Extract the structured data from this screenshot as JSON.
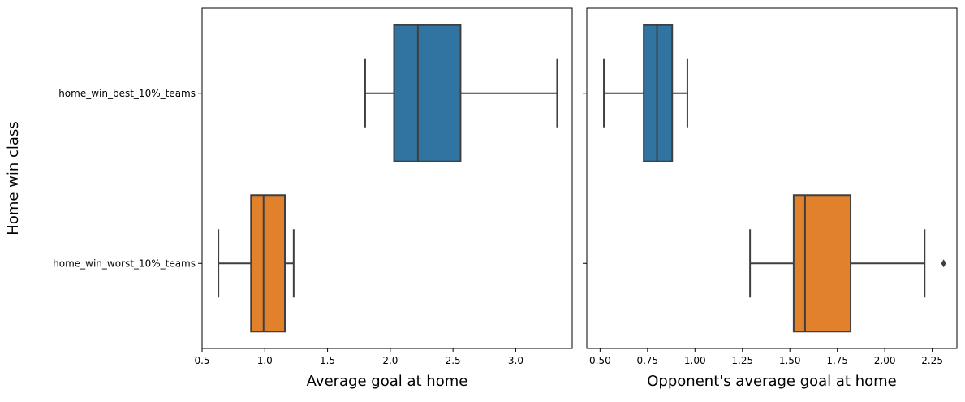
{
  "chart_data": [
    {
      "type": "boxplot",
      "xlabel": "Average goal at home",
      "ylabel": "Home win class",
      "categories": [
        "home_win_best_10%_teams",
        "home_win_worst_10%_teams"
      ],
      "xlim": [
        0.5,
        3.45
      ],
      "xticks": [
        0.5,
        1.0,
        1.5,
        2.0,
        2.5,
        3.0
      ],
      "xtick_labels": [
        "0.5",
        "1.0",
        "1.5",
        "2.0",
        "2.5",
        "3.0"
      ],
      "series": [
        {
          "category": "home_win_best_10%_teams",
          "color": "#3274a1",
          "whisker_low": 1.8,
          "q1": 2.03,
          "median": 2.22,
          "q3": 2.56,
          "whisker_high": 3.33,
          "outliers": []
        },
        {
          "category": "home_win_worst_10%_teams",
          "color": "#e1812c",
          "whisker_low": 0.63,
          "q1": 0.89,
          "median": 0.99,
          "q3": 1.16,
          "whisker_high": 1.23,
          "outliers": []
        }
      ],
      "grid": false,
      "legend": "none"
    },
    {
      "type": "boxplot",
      "xlabel": "Opponent's average goal at home",
      "ylabel": "",
      "categories": [
        "home_win_best_10%_teams",
        "home_win_worst_10%_teams"
      ],
      "xlim": [
        0.43,
        2.38
      ],
      "xticks": [
        0.5,
        0.75,
        1.0,
        1.25,
        1.5,
        1.75,
        2.0,
        2.25
      ],
      "xtick_labels": [
        "0.50",
        "0.75",
        "1.00",
        "1.25",
        "1.50",
        "1.75",
        "2.00",
        "2.25"
      ],
      "series": [
        {
          "category": "home_win_best_10%_teams",
          "color": "#3274a1",
          "whisker_low": 0.52,
          "q1": 0.73,
          "median": 0.8,
          "q3": 0.88,
          "whisker_high": 0.96,
          "outliers": []
        },
        {
          "category": "home_win_worst_10%_teams",
          "color": "#e1812c",
          "whisker_low": 1.29,
          "q1": 1.52,
          "median": 1.58,
          "q3": 1.82,
          "whisker_high": 2.21,
          "outliers": [
            2.31
          ]
        }
      ],
      "grid": false,
      "legend": "none"
    }
  ]
}
